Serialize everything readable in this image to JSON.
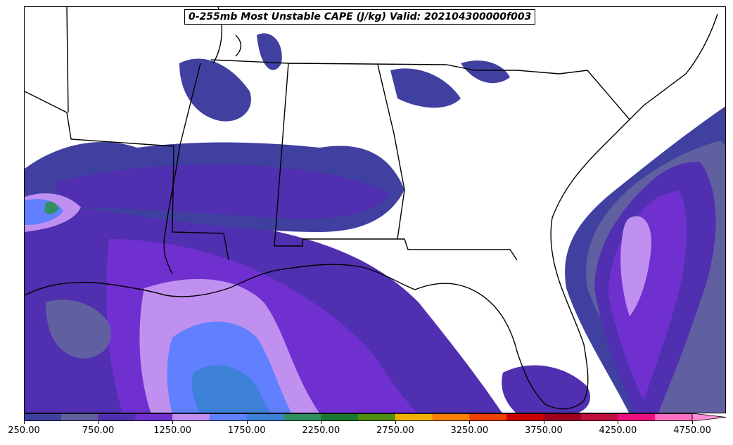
{
  "title": "0-255mb Most Unstable CAPE (J/kg) Valid: 202104300000f003",
  "colorbar": {
    "min": 250,
    "max": 4750,
    "step": 250,
    "colors": [
      "#4040a0",
      "#6060a0",
      "#5030b0",
      "#7030d0",
      "#c090f0",
      "#6080ff",
      "#3c80d8",
      "#309060",
      "#187830",
      "#508c10",
      "#f0b000",
      "#ff8000",
      "#ee4000",
      "#cc0000",
      "#a00020",
      "#c01040",
      "#ee1080",
      "#ff70c0"
    ],
    "extend_color": "#ff90d8",
    "tick_labels": [
      "250.00",
      "750.00",
      "1250.00",
      "1750.00",
      "2250.00",
      "2750.00",
      "3250.00",
      "3750.00",
      "4250.00",
      "4750.00"
    ]
  },
  "map": {
    "region": "Southeastern United States and Gulf of Mexico",
    "field_colors": {
      "low": "#4040a0",
      "mid": "#6060a0",
      "high": "#5030b0",
      "higher": "#7030d0",
      "light": "#c090f0",
      "blue": "#6080ff",
      "steel": "#3c80d8",
      "green": "#309060"
    }
  }
}
